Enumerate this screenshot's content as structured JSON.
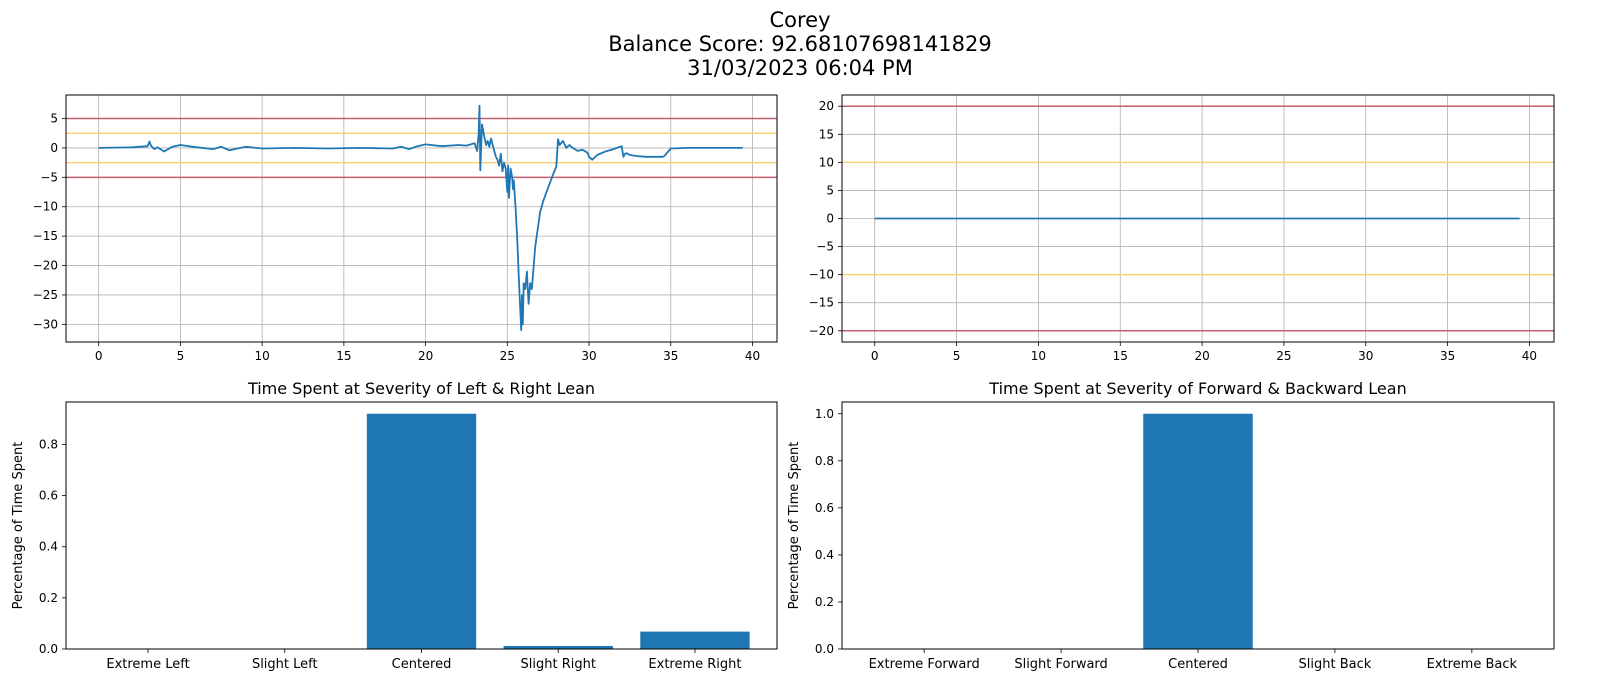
{
  "figure": {
    "name": "Corey",
    "score_line": "Balance Score: 92.68107698141829",
    "datetime": "31/03/2023 06:04 PM"
  },
  "colors": {
    "series": "#1f77b4",
    "extreme_threshold": "#c06070",
    "slight_threshold": "#f5d27a",
    "grid": "#b0b0b0"
  },
  "chart_data": [
    {
      "id": "lr-trace",
      "type": "line",
      "title": "",
      "xlabel": "",
      "ylabel": "",
      "xlim": [
        -2,
        41.5
      ],
      "ylim": [
        -33,
        9
      ],
      "xticks": [
        0,
        5,
        10,
        15,
        20,
        25,
        30,
        35,
        40
      ],
      "yticks": [
        -30,
        -25,
        -20,
        -15,
        -10,
        -5,
        0,
        5
      ],
      "grid": true,
      "hlines": [
        {
          "y": 5,
          "kind": "extreme"
        },
        {
          "y": 2.5,
          "kind": "slight"
        },
        {
          "y": -2.5,
          "kind": "slight"
        },
        {
          "y": -5,
          "kind": "extreme"
        }
      ],
      "series": [
        {
          "x": [
            0,
            2,
            3,
            3.1,
            3.2,
            3.4,
            3.6,
            4,
            4.5,
            5,
            6,
            7,
            7.5,
            8,
            8.5,
            9,
            10,
            12,
            14,
            16,
            18,
            18.5,
            19,
            19.5,
            20,
            21,
            22,
            22.5,
            23,
            23.15,
            23.25,
            23.3,
            23.35,
            23.45,
            23.6,
            23.7,
            23.8,
            23.9,
            24,
            24.2,
            24.3,
            24.4,
            24.5,
            24.6,
            24.7,
            24.8,
            24.9,
            25,
            25.05,
            25.1,
            25.2,
            25.3,
            25.35,
            25.4,
            25.5,
            25.6,
            25.7,
            25.8,
            25.85,
            25.9,
            25.95,
            26,
            26.1,
            26.2,
            26.3,
            26.4,
            26.5,
            26.6,
            26.7,
            26.8,
            26.9,
            27,
            27.2,
            27.4,
            27.6,
            27.8,
            28,
            28.1,
            28.2,
            28.4,
            28.6,
            28.8,
            29,
            29.3,
            29.6,
            29.9,
            30,
            30.2,
            30.5,
            31,
            31.5,
            32,
            32.1,
            32.2,
            32.3,
            32.5,
            33,
            33.5,
            34,
            34.5,
            34.6,
            35,
            36,
            37,
            38,
            39.4
          ],
          "y": [
            0,
            0.1,
            0.3,
            1.1,
            0.4,
            -0.2,
            0.1,
            -0.6,
            0.2,
            0.5,
            0.1,
            -0.2,
            0.2,
            -0.4,
            -0.1,
            0.2,
            -0.1,
            0,
            -0.1,
            0,
            -0.1,
            0.2,
            -0.2,
            0.3,
            0.6,
            0.3,
            0.5,
            0.4,
            0.8,
            -0.5,
            2.5,
            7.2,
            -3.8,
            4,
            1.8,
            0.5,
            1.2,
            0.2,
            1.6,
            -0.5,
            -1.5,
            -2,
            -3,
            -1,
            -4,
            -2.5,
            -3.5,
            -7.5,
            -3,
            -8.5,
            -3.5,
            -5,
            -7,
            -5.5,
            -10,
            -15,
            -22,
            -28,
            -31,
            -25,
            -30,
            -23,
            -24,
            -21,
            -26.5,
            -23,
            -24,
            -20.5,
            -17,
            -15,
            -13,
            -11,
            -9,
            -7.5,
            -6,
            -4.5,
            -3.2,
            1.5,
            0.5,
            1.2,
            0,
            0.5,
            0,
            -0.5,
            -0.3,
            -0.8,
            -1.5,
            -2,
            -1.2,
            -0.6,
            -0.2,
            0.3,
            -1.5,
            -1,
            -0.9,
            -1.2,
            -1.4,
            -1.5,
            -1.5,
            -1.5,
            -1.4,
            -0.1,
            0,
            0,
            0,
            0
          ]
        }
      ]
    },
    {
      "id": "fb-trace",
      "type": "line",
      "title": "",
      "xlabel": "",
      "ylabel": "",
      "xlim": [
        -2,
        41.5
      ],
      "ylim": [
        -22,
        22
      ],
      "xticks": [
        0,
        5,
        10,
        15,
        20,
        25,
        30,
        35,
        40
      ],
      "yticks": [
        -20,
        -15,
        -10,
        -5,
        0,
        5,
        10,
        15,
        20
      ],
      "grid": true,
      "hlines": [
        {
          "y": 20,
          "kind": "extreme"
        },
        {
          "y": 10,
          "kind": "slight"
        },
        {
          "y": -10,
          "kind": "slight"
        },
        {
          "y": -20,
          "kind": "extreme"
        }
      ],
      "series": [
        {
          "x": [
            0,
            39.4
          ],
          "y": [
            0,
            0
          ]
        }
      ]
    },
    {
      "id": "lr-bars",
      "type": "bar",
      "title": "Time Spent at Severity of Left & Right Lean",
      "xlabel": "",
      "ylabel": "Percentage of Time Spent",
      "ylim": [
        0,
        0.966
      ],
      "yticks": [
        0.0,
        0.2,
        0.4,
        0.6,
        0.8
      ],
      "categories": [
        "Extreme Left",
        "Slight Left",
        "Centered",
        "Slight Right",
        "Extreme Right"
      ],
      "values": [
        0,
        0,
        0.92,
        0.012,
        0.068
      ]
    },
    {
      "id": "fb-bars",
      "type": "bar",
      "title": "Time Spent at Severity of Forward & Backward Lean",
      "xlabel": "",
      "ylabel": "Percentage of Time Spent",
      "ylim": [
        0,
        1.05
      ],
      "yticks": [
        0.0,
        0.2,
        0.4,
        0.6,
        0.8,
        1.0
      ],
      "categories": [
        "Extreme Forward",
        "Slight Forward",
        "Centered",
        "Slight Back",
        "Extreme Back"
      ],
      "values": [
        0,
        0,
        1.0,
        0,
        0
      ]
    }
  ]
}
